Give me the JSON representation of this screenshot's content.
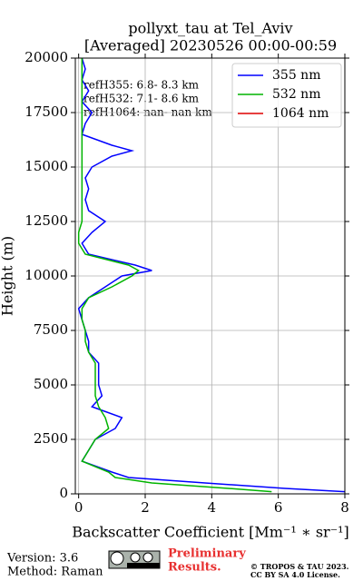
{
  "chart_data": {
    "type": "line",
    "title": "pollyxt_tau at Tel_Aviv",
    "subtitle": "[Averaged] 20230526 00:00-00:59",
    "xlabel": "Backscatter Coefficient [Mm⁻¹ ∗ sr⁻¹]",
    "ylabel": "Height (m)",
    "heights": [
      100,
      250,
      500,
      750,
      1000,
      1500,
      2000,
      2500,
      3000,
      3500,
      4000,
      4500,
      5000,
      5500,
      6000,
      6500,
      7000,
      7500,
      8000,
      8500,
      9000,
      9500,
      10000,
      10250,
      10500,
      11000,
      11500,
      12000,
      12500,
      13000,
      13500,
      14000,
      14500,
      15000,
      15500,
      15750,
      16000,
      16500,
      17000,
      17500,
      18000,
      18500,
      19000,
      19500,
      20000
    ],
    "series": [
      {
        "name": "355 nm",
        "color": "#0000ff",
        "values": [
          8,
          6.2,
          3.8,
          1.5,
          1.0,
          0.1,
          0.3,
          0.5,
          1.1,
          1.3,
          0.4,
          0.7,
          0.6,
          0.6,
          0.6,
          0.3,
          0.3,
          0.2,
          0.1,
          0.0,
          0.3,
          0.8,
          1.3,
          2.2,
          1.7,
          0.3,
          0.1,
          0.4,
          0.8,
          0.3,
          0.2,
          0.3,
          0.2,
          0.4,
          1.0,
          1.6,
          1.0,
          0.1,
          0.2,
          0.4,
          0.1,
          0.3,
          0.1,
          0.2,
          0.1
        ]
      },
      {
        "name": "532 nm",
        "color": "#00b400",
        "values": [
          5.8,
          4.5,
          2.2,
          1.1,
          0.9,
          0.1,
          0.3,
          0.5,
          0.9,
          0.8,
          0.6,
          0.5,
          0.5,
          0.5,
          0.5,
          0.3,
          0.2,
          0.2,
          0.1,
          0.1,
          0.3,
          1.0,
          1.6,
          1.8,
          1.5,
          0.2,
          0.0,
          0.0,
          0.1,
          0.1,
          0.1,
          0.1,
          0.1,
          0.1,
          0.1,
          0.1,
          0.1,
          0.1,
          0.1,
          0.1,
          0.1,
          0.1,
          0.1,
          0.1,
          0.1
        ]
      },
      {
        "name": "1064 nm",
        "color": "#e00000",
        "values": [
          null,
          null,
          null,
          null,
          null,
          null,
          null,
          null,
          null,
          null,
          null,
          null,
          null,
          null,
          null,
          null,
          null,
          null,
          null,
          null,
          null,
          null,
          null,
          null,
          null,
          null,
          null,
          null,
          null,
          null,
          null,
          null,
          null,
          null,
          null,
          null,
          null,
          null,
          null,
          null,
          null,
          null,
          null,
          null,
          null
        ]
      }
    ],
    "xlim": [
      -0.1,
      8
    ],
    "xticks": [
      0,
      2,
      4,
      6,
      8
    ],
    "ylim": [
      0,
      20000
    ],
    "yticks": [
      0,
      2500,
      5000,
      7500,
      10000,
      12500,
      15000,
      17500,
      20000
    ],
    "grid": true,
    "legend": "upper right",
    "annotations": [
      "refH355:  6.8- 8.3 km",
      "refH532:  7.1- 8.6 km",
      "refH1064:  nan- nan km"
    ]
  },
  "footer": {
    "version": "Version: 3.6",
    "method": "Method: Raman",
    "preliminary": [
      "Preliminary",
      "Results."
    ],
    "copyright": [
      "© TROPOS & TAU 2023.",
      "CC BY SA 4.0 License."
    ]
  }
}
